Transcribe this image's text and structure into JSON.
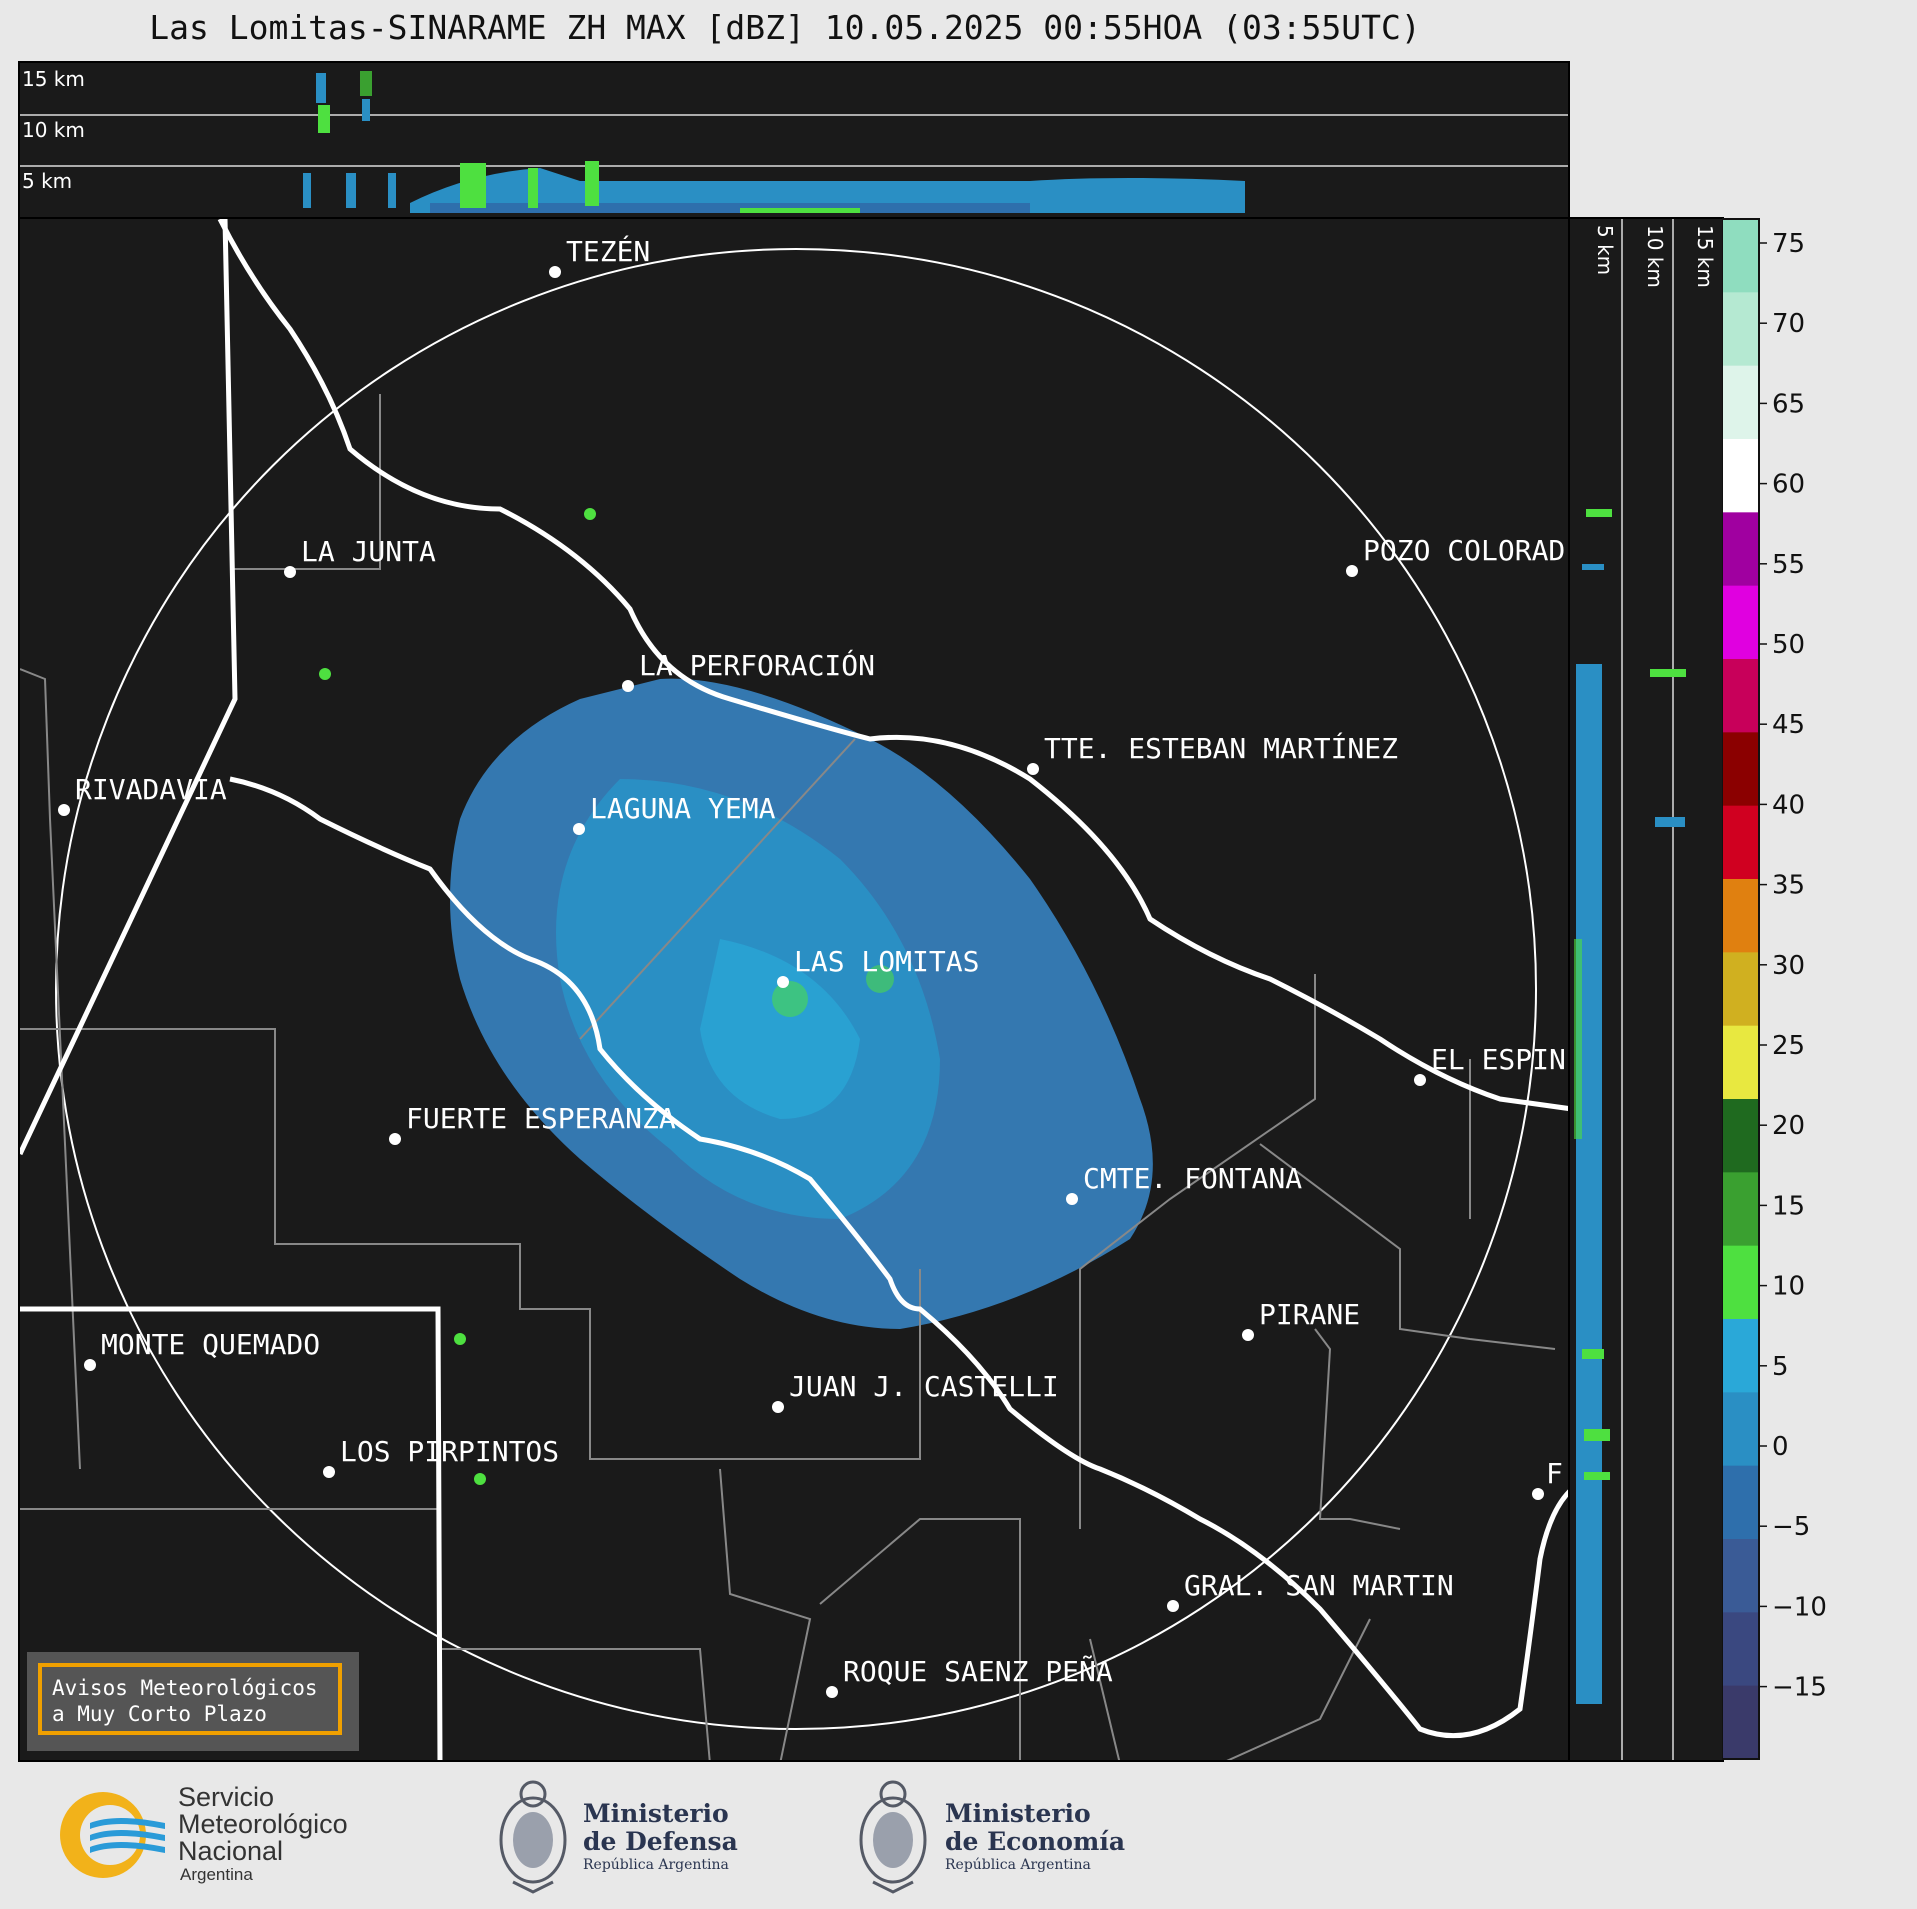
{
  "title": "Las Lomitas-SINARAME ZH MAX [dBZ] 10.05.2025 00:55HOA (03:55UTC)",
  "height_labels": [
    "15 km",
    "10 km",
    "5 km"
  ],
  "cities": [
    {
      "name": "TEZÉN"
    },
    {
      "name": "LA JUNTA"
    },
    {
      "name": "POZO COLORAD"
    },
    {
      "name": "LA PERFORACIÓN"
    },
    {
      "name": "TTE. ESTEBAN MARTÍNEZ"
    },
    {
      "name": "RIVADAVIA"
    },
    {
      "name": "LAGUNA YEMA"
    },
    {
      "name": "LAS LOMITAS"
    },
    {
      "name": "EL ESPIN"
    },
    {
      "name": "FUERTE ESPERANZA"
    },
    {
      "name": "CMTE. FONTANA"
    },
    {
      "name": "PIRANE"
    },
    {
      "name": "MONTE QUEMADO"
    },
    {
      "name": "JUAN J. CASTELLI"
    },
    {
      "name": "LOS PIRPINTOS"
    },
    {
      "name": "GRAL. SAN MARTIN"
    },
    {
      "name": "ROQUE SAENZ PEÑA"
    },
    {
      "name": "F"
    }
  ],
  "colorbar": {
    "ticks": [
      "75",
      "70",
      "65",
      "60",
      "55",
      "50",
      "45",
      "40",
      "35",
      "30",
      "25",
      "20",
      "15",
      "10",
      "5",
      "0",
      "−5",
      "−10",
      "−15"
    ],
    "colors": [
      "#8fddbf",
      "#b5e9d2",
      "#def4ea",
      "#ffffff",
      "#a000a0",
      "#e000e0",
      "#c8005a",
      "#8b0000",
      "#d00020",
      "#e08010",
      "#d0b020",
      "#e8e840",
      "#1f6a1f",
      "#3aa030",
      "#4ee040",
      "#2aa8d8",
      "#2a8fc4",
      "#2e6fac",
      "#3a5b96",
      "#3a4880",
      "#3a3a6a"
    ]
  },
  "badge": {
    "line1": "Avisos Meteorológicos",
    "line2": "a Muy Corto Plazo"
  },
  "logos": {
    "smn": {
      "line1": "Servicio",
      "line2": "Meteorológico",
      "line3": "Nacional",
      "line4": "Argentina"
    },
    "defensa": {
      "line1": "Ministerio",
      "line2": "de Defensa",
      "line3": "República Argentina"
    },
    "economia": {
      "line1": "Ministerio",
      "line2": "de Economía",
      "line3": "República Argentina"
    }
  }
}
